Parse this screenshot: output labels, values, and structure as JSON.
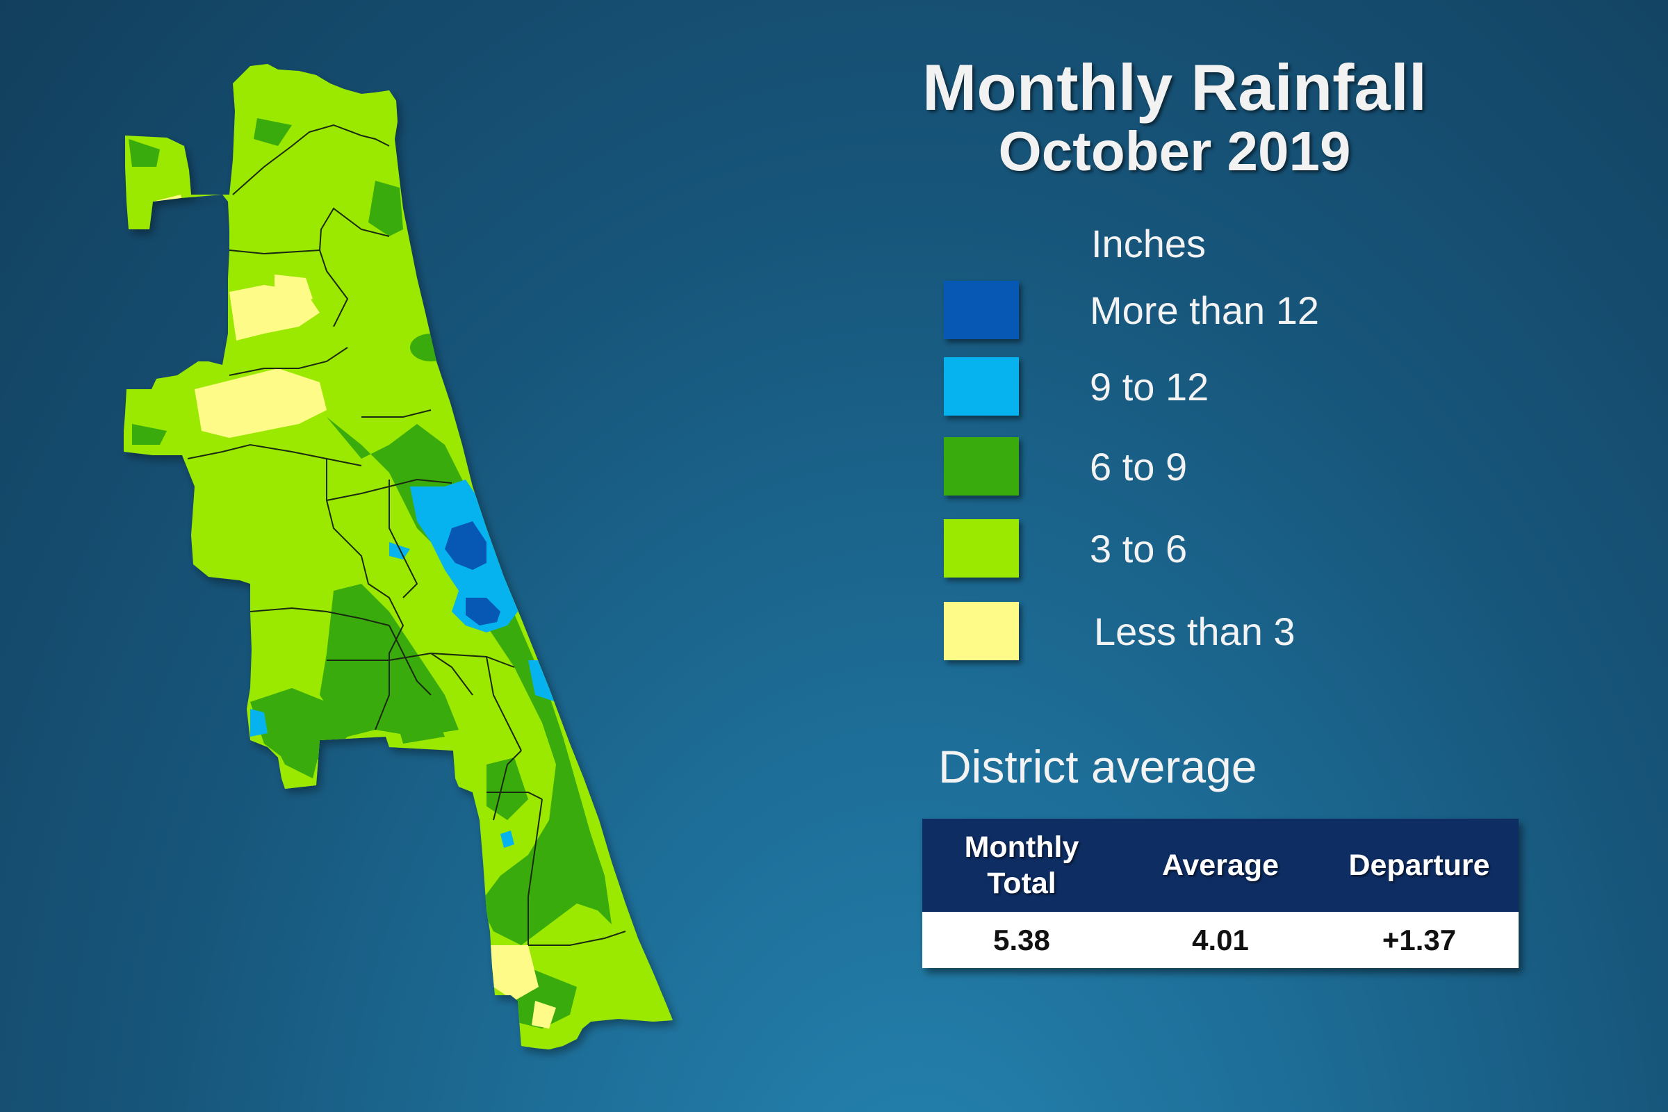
{
  "title": "Monthly Rainfall",
  "subtitle": "October 2019",
  "legend": {
    "units": "Inches",
    "items": [
      {
        "label": "More than 12",
        "color": "#0757b5"
      },
      {
        "label": "9 to 12",
        "color": "#07b3ef"
      },
      {
        "label": "6 to 9",
        "color": "#3aab0c"
      },
      {
        "label": "3 to 6",
        "color": "#9be800"
      },
      {
        "label": "Less than 3",
        "color": "#fffb88"
      }
    ]
  },
  "district_average": {
    "heading": "District average",
    "headers": {
      "monthly_total": "Monthly Total",
      "average": "Average",
      "departure": "Departure"
    },
    "values": {
      "monthly_total": "5.38",
      "average": "4.01",
      "departure": "+1.37"
    }
  },
  "map": {
    "colors": {
      "county_lines": "#1a2a10"
    }
  }
}
